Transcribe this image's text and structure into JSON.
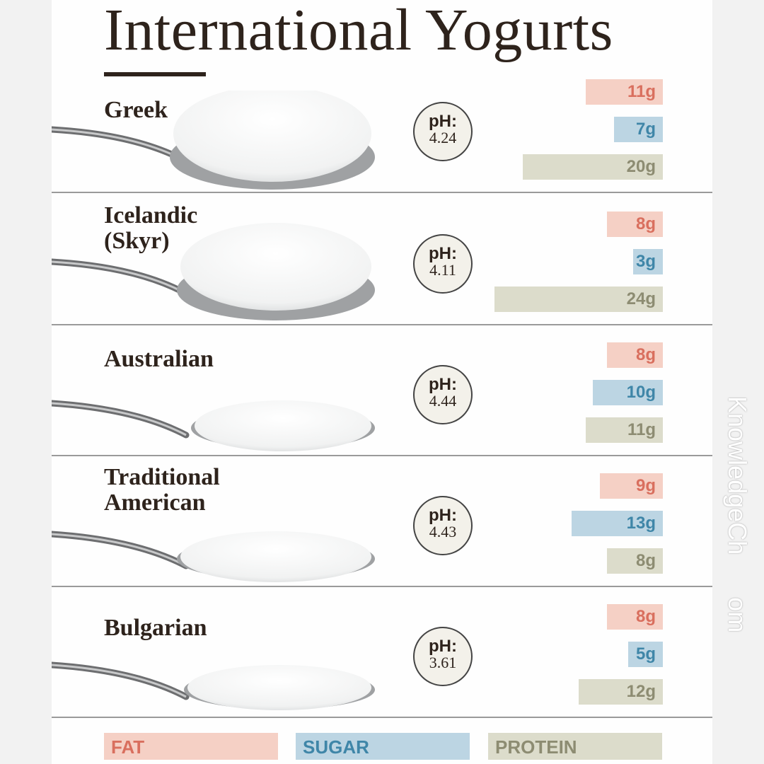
{
  "title": "International Yogurts",
  "ph_label": "pH:",
  "unit": "g",
  "colors": {
    "fat": "#f5d0c5",
    "sugar": "#bcd5e3",
    "protein": "#dcdccb",
    "fat_text": "#d96f5e",
    "sugar_text": "#3f86a8",
    "protein_text": "#8d8c72"
  },
  "legend": {
    "fat": "FAT",
    "sugar": "SUGAR",
    "protein": "PROTEIN"
  },
  "watermark": "KnowledgeCh      om",
  "chart_data": {
    "type": "bar",
    "orientation": "horizontal",
    "title": "International Yogurts",
    "categories": [
      "Greek",
      "Icelandic\n(Skyr)",
      "Australian",
      "Traditional\nAmerican",
      "Bulgarian"
    ],
    "ph": [
      "4.24",
      "4.11",
      "4.44",
      "4.43",
      "3.61"
    ],
    "series": [
      {
        "name": "FAT",
        "values": [
          11,
          8,
          8,
          9,
          8
        ]
      },
      {
        "name": "SUGAR",
        "values": [
          7,
          3,
          10,
          13,
          5
        ]
      },
      {
        "name": "PROTEIN",
        "values": [
          20,
          24,
          11,
          8,
          12
        ]
      }
    ],
    "legend_position": "bottom"
  }
}
